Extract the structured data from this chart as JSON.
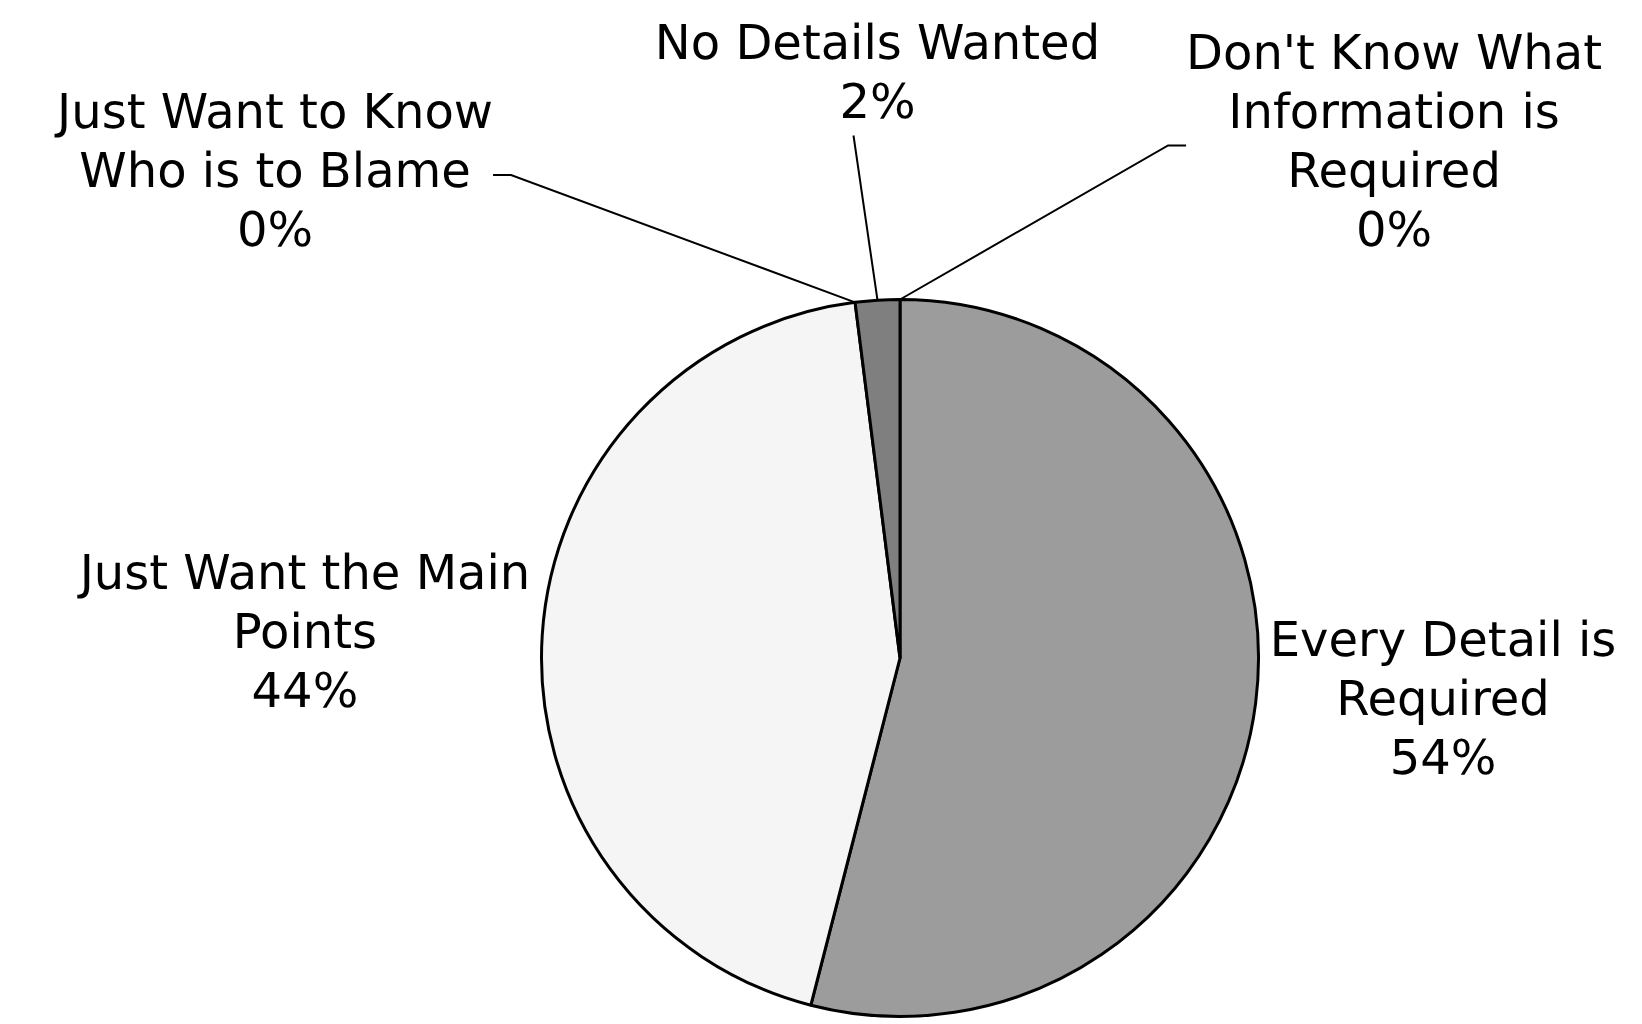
{
  "chart_data": {
    "type": "pie",
    "categories": [
      "Every Detail is Required",
      "Just Want the Main Points",
      "Just Want to Know Who is to Blame",
      "No Details Wanted",
      "Don't Know What Information is Required"
    ],
    "values": [
      54,
      44,
      0,
      2,
      0
    ],
    "colors": [
      "#9c9c9c",
      "#f5f5f5",
      "#000000",
      "#7f7f7f",
      "#ffffff"
    ],
    "value_labels": [
      "54%",
      "44%",
      "0%",
      "2%",
      "0%"
    ]
  }
}
